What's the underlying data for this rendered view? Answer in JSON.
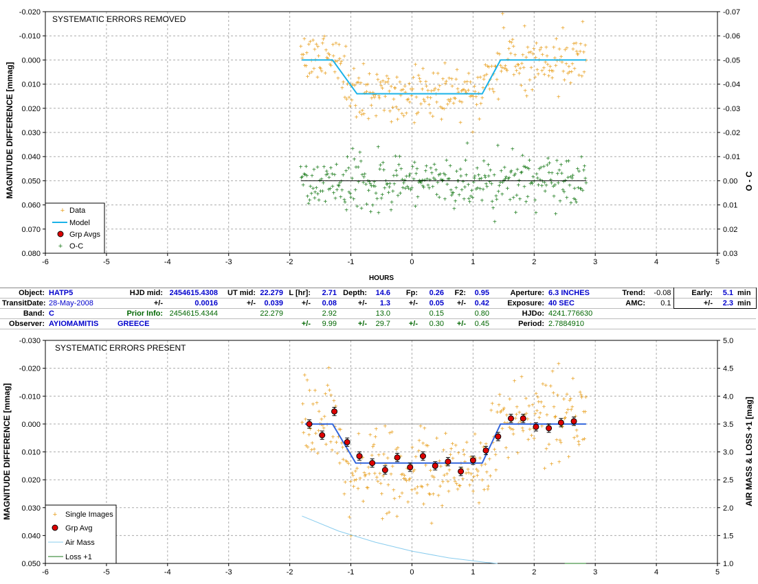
{
  "chart_data": [
    {
      "type": "scatter",
      "title": "SYSTEMATIC ERRORS REMOVED",
      "xlabel": "HOURS",
      "ylabel": "MAGNITUDE DIFFERENCE [mmag]",
      "y2label": "O - C",
      "xlim": [
        -6,
        5
      ],
      "ylim": [
        0.08,
        -0.02
      ],
      "y2lim": [
        0.03,
        -0.07
      ],
      "xticks": [
        "-6",
        "-5",
        "-4",
        "-3",
        "-2",
        "-1",
        "0",
        "1",
        "2",
        "3",
        "4",
        "5"
      ],
      "yticks": [
        "-0.020",
        "-0.010",
        "0.000",
        "0.010",
        "0.020",
        "0.030",
        "0.040",
        "0.050",
        "0.060",
        "0.070",
        "0.080"
      ],
      "y2ticks": [
        "-0.07",
        "-0.06",
        "-0.05",
        "-0.04",
        "-0.03",
        "-0.02",
        "-0.01",
        "0.00",
        "0.01",
        "0.02",
        "0.03"
      ],
      "grid": true,
      "legend_position": "bottom-left",
      "legend": [
        "Data",
        "Model",
        "Grp Avgs",
        "O-C"
      ],
      "series": [
        {
          "name": "Data",
          "color": "#e8a020",
          "marker": "+",
          "x_range": [
            -1.82,
            2.85
          ],
          "count": 330,
          "out_of_transit_mean": 0.0,
          "in_transit_mean": 0.0145,
          "scatter": 0.0055
        },
        {
          "name": "Model",
          "color": "#1ab2e8",
          "x": [
            -1.8,
            -1.3,
            -0.9,
            1.15,
            1.45,
            2.85
          ],
          "y": [
            0.0,
            0.0,
            0.014,
            0.014,
            0.0,
            0.0
          ]
        },
        {
          "name": "O-C",
          "color": "#1a7a1a",
          "marker": "+",
          "x_range": [
            -1.82,
            2.85
          ],
          "count": 330,
          "mean": 0.05,
          "scatter": 0.0055,
          "zero_line": 0.05
        }
      ]
    },
    {
      "type": "scatter",
      "title": "SYSTEMATIC ERRORS PRESENT",
      "xlabel": "",
      "ylabel": "MAGNITUDE DIFFERENCE [mmag]",
      "y2label": "AIR MASS & LOSS +1 [mag]",
      "xlim": [
        -6,
        5
      ],
      "ylim": [
        0.05,
        -0.03
      ],
      "y2lim": [
        1.0,
        5.0
      ],
      "xticks": [
        "-6",
        "-5",
        "-4",
        "-3",
        "-2",
        "-1",
        "0",
        "1",
        "2",
        "3",
        "4",
        "5"
      ],
      "yticks": [
        "-0.030",
        "-0.020",
        "-0.010",
        "0.000",
        "0.010",
        "0.020",
        "0.030",
        "0.040",
        "0.050"
      ],
      "y2ticks": [
        "5.0",
        "4.5",
        "4.0",
        "3.5",
        "3.0",
        "2.5",
        "2.0",
        "1.5",
        "1.0"
      ],
      "grid": true,
      "legend_position": "bottom-left",
      "legend": [
        "Single Images",
        "Grp Avg",
        "Air Mass",
        "Loss +1"
      ],
      "series": [
        {
          "name": "Single Images",
          "color": "#e8a020",
          "marker": "+",
          "x_range": [
            -1.8,
            2.85
          ],
          "count": 330,
          "out_of_transit_mean": -0.002,
          "in_transit_mean": 0.0165,
          "scatter": 0.0075
        },
        {
          "name": "Model",
          "color": "#3366dd",
          "x": [
            -1.75,
            -1.3,
            -0.92,
            1.15,
            1.45,
            2.85
          ],
          "y": [
            0.0,
            0.0,
            0.014,
            0.014,
            0.0,
            0.0
          ]
        },
        {
          "name": "Grp Avg",
          "color": "#dd0000",
          "x": [
            -1.68,
            -1.47,
            -1.27,
            -1.06,
            -0.86,
            -0.65,
            -0.44,
            -0.24,
            -0.03,
            0.18,
            0.38,
            0.59,
            0.8,
            1.0,
            1.21,
            1.41,
            1.62,
            1.82,
            2.03,
            2.24,
            2.44,
            2.65
          ],
          "y": [
            0.0,
            0.004,
            -0.0045,
            0.0065,
            0.0115,
            0.014,
            0.0165,
            0.012,
            0.0155,
            0.0115,
            0.015,
            0.0135,
            0.017,
            0.013,
            0.0095,
            0.0045,
            -0.002,
            -0.002,
            0.001,
            0.0015,
            -0.0005,
            -0.001
          ],
          "err": 0.0015
        },
        {
          "name": "Air Mass",
          "color": "#88ccee",
          "x": [
            -1.8,
            -1.2,
            -0.6,
            0.0,
            0.6,
            1.2,
            1.4
          ],
          "y2": [
            1.85,
            1.58,
            1.38,
            1.22,
            1.1,
            1.02,
            1.0
          ]
        },
        {
          "name": "Loss +1",
          "color": "#1a7a1a",
          "x": [
            2.5,
            2.85
          ],
          "y2": [
            1.0,
            1.0
          ]
        }
      ]
    }
  ],
  "info": {
    "row1": {
      "object_label": "Object:",
      "object": "HATP5",
      "hjdmid_label": "HJD mid:",
      "hjdmid": "2454615.4308",
      "utmid_label": "UT mid:",
      "utmid": "22.279",
      "lhr_label": "L [hr]:",
      "lhr": "2.71",
      "depth_label": "Depth:",
      "depth": "14.6",
      "fp_label": "Fp:",
      "fp": "0.26",
      "f2_label": "F2:",
      "f2": "0.95",
      "aperture_label": "Aperture:",
      "aperture": "6.3 INCHES",
      "trend_label": "Trend:",
      "trend": "-0.08",
      "early_label": "Early:",
      "early": "5.1",
      "early_unit": "min"
    },
    "row2": {
      "date_label": "TransitDate:",
      "date": "28-May-2008",
      "pm1": "+/-",
      "hjd_err": "0.0016",
      "pm2": "+/-",
      "ut_err": "0.039",
      "pm3": "+/-",
      "l_err": "0.08",
      "pm4": "+/-",
      "depth_err": "1.3",
      "pm5": "+/-",
      "fp_err": "0.05",
      "pm6": "+/-",
      "f2_err": "0.42",
      "exposure_label": "Exposure:",
      "exposure": "40 SEC",
      "amc_label": "AMC:",
      "amc": "0.1",
      "pm7": "+/-",
      "early_err": "2.3",
      "early_unit": "min"
    },
    "row3": {
      "band_label": "Band:",
      "band": "C",
      "prior_label": "Prior Info:",
      "prior_hjd": "2454615.4344",
      "prior_ut": "22.279",
      "prior_l": "2.92",
      "prior_depth": "13.0",
      "prior_fp": "0.15",
      "prior_f2": "0.80",
      "hjdo_label": "HJDo:",
      "hjdo": "4241.776630"
    },
    "row4": {
      "observer_label": "Observer:",
      "observer": "AYIOMAMITIS",
      "country": "GREECE",
      "pm1": "+/-",
      "l_err": "9.99",
      "pm2": "+/-",
      "depth_err": "29.7",
      "pm3": "+/-",
      "fp_err": "0.30",
      "pm4": "+/-",
      "f2_err": "0.45",
      "period_label": "Period:",
      "period": "2.7884910"
    }
  }
}
